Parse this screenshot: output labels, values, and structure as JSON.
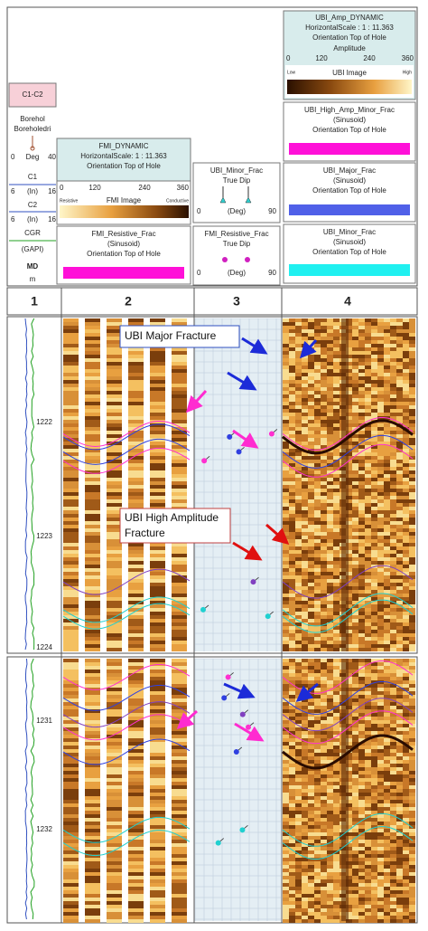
{
  "left_legend": {
    "title": "C1-C2",
    "line1": "Borehol",
    "line2": "Boreholedri",
    "scale1": [
      "0",
      "Deg",
      "40"
    ],
    "c1": "C1",
    "scale2": [
      "6",
      "(In)",
      "16"
    ],
    "c2": "C2",
    "scale3": [
      "6",
      "(In)",
      "16"
    ],
    "cgr": "CGR",
    "cgr_unit": "(GAPI)",
    "md": "MD",
    "md_unit": "m"
  },
  "fmi_dynamic": {
    "title": "FMI_DYNAMIC",
    "scale": "HorizontalScale: 1 : 11.363",
    "orientation": "Orientation Top of Hole",
    "ticks": [
      "0",
      "120",
      "240",
      "360"
    ],
    "bar_left": "Resistive",
    "bar_mid": "FMI Image",
    "bar_right": "Conductive"
  },
  "fmi_resistive_frac": {
    "title": "FMI_Resistive_Frac",
    "sub": "(Sinusoid)",
    "orientation": "Orientation Top of Hole"
  },
  "ubi_minor_dip": {
    "title": "UBI_Minor_Frac",
    "sub": "True Dip",
    "scale": [
      "0",
      "(Deg)",
      "90"
    ]
  },
  "fmi_resistive_dip": {
    "title": "FMI_Resistive_Frac",
    "sub": "True Dip",
    "scale": [
      "0",
      "(Deg)",
      "90"
    ]
  },
  "ubi_amp_dynamic": {
    "title": "UBI_Amp_DYNAMIC",
    "scale": "HorizontalScale : 1 : 11.363",
    "orientation": "Orientation Top of Hole",
    "sub": "Amplitude",
    "ticks": [
      "0",
      "120",
      "240",
      "360"
    ],
    "bar_left": "Low",
    "bar_mid": "UBI Image",
    "bar_right": "High"
  },
  "ubi_high_amp": {
    "title": "UBI_High_Amp_Minor_Frac",
    "sub": "(Sinusoid)",
    "orientation": "Orientation Top of Hole"
  },
  "ubi_major": {
    "title": "UBI_Major_Frac",
    "sub": "(Sinusoid)",
    "orientation": "Orientation Top of Hole"
  },
  "ubi_minor": {
    "title": "UBI_Minor_Frac",
    "sub": "(Sinusoid)",
    "orientation": "Orientation Top of Hole"
  },
  "tracks": [
    "1",
    "2",
    "3",
    "4"
  ],
  "depths": [
    "1222",
    "1223",
    "1224",
    "1231",
    "1232"
  ],
  "annotations": [
    "UBI Major Fracture",
    "UBI High Amplitude",
    "Fracture"
  ]
}
